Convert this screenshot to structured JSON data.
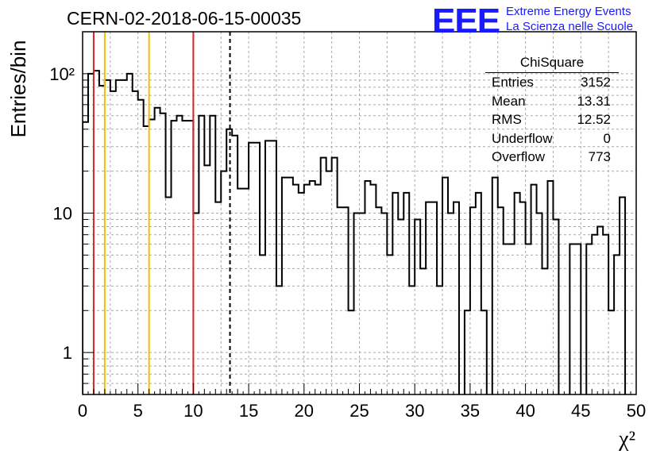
{
  "title": "CERN-02-2018-06-15-00035",
  "logo": {
    "mark": "EEE",
    "line1": "Extreme Energy Events",
    "line2": "La Scienza nelle Scuole",
    "color": "#1a1aff"
  },
  "stats": {
    "title": "ChiSquare",
    "rows": [
      {
        "label": "Entries",
        "value": "3152"
      },
      {
        "label": "Mean",
        "value": "13.31"
      },
      {
        "label": "RMS",
        "value": "12.52"
      },
      {
        "label": "Underflow",
        "value": "0"
      },
      {
        "label": "Overflow",
        "value": "773"
      }
    ]
  },
  "chart_data": {
    "type": "histogram",
    "title": "CERN-02-2018-06-15-00035",
    "xlabel": "χ²",
    "ylabel": "Entries/bin",
    "xlim": [
      0,
      50
    ],
    "ylim": [
      0.5,
      200
    ],
    "y_scale": "log",
    "grid": true,
    "bin_width": 0.5,
    "x_ticks": [
      "0",
      "5",
      "10",
      "15",
      "20",
      "25",
      "30",
      "35",
      "40",
      "45",
      "50"
    ],
    "y_ticks": [
      "1",
      "10",
      "10²"
    ],
    "vertical_lines": [
      {
        "x": 1,
        "color": "#dd2222",
        "style": "solid"
      },
      {
        "x": 2,
        "color": "#f0c000",
        "style": "solid"
      },
      {
        "x": 6,
        "color": "#f0c000",
        "style": "solid"
      },
      {
        "x": 10,
        "color": "#dd2222",
        "style": "solid"
      },
      {
        "x": 13.31,
        "color": "#000000",
        "style": "dashed"
      }
    ],
    "bin_values": [
      45,
      100,
      105,
      82,
      90,
      75,
      90,
      90,
      100,
      75,
      65,
      42,
      47,
      57,
      52,
      13,
      46,
      50,
      46,
      46,
      10,
      50,
      22,
      50,
      12,
      20,
      40,
      36,
      15,
      15,
      32,
      32,
      5,
      33,
      33,
      3,
      18,
      18,
      16,
      14,
      16,
      17,
      16,
      25,
      20,
      25,
      11,
      11,
      2,
      10,
      10,
      17,
      16,
      11,
      10,
      5,
      14,
      9,
      14,
      3,
      9,
      4,
      12,
      12,
      3,
      18,
      10,
      12,
      0,
      2,
      11,
      14,
      2,
      0,
      18,
      11,
      6,
      6,
      14,
      12,
      6,
      16,
      10,
      4,
      17,
      9,
      0,
      0,
      6,
      6,
      0,
      6,
      7,
      8,
      7,
      2,
      5,
      13
    ]
  }
}
